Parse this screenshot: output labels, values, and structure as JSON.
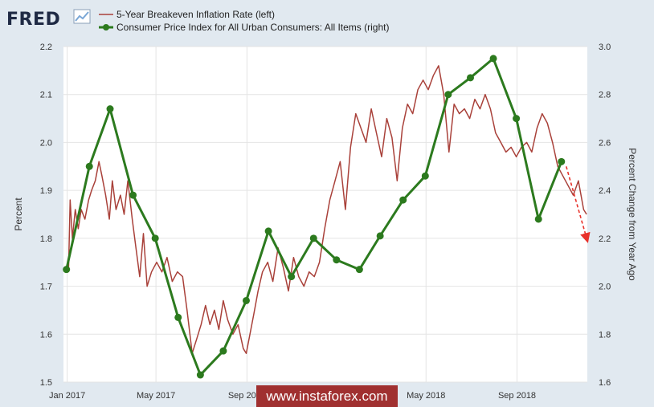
{
  "logo": {
    "text": "FRED"
  },
  "chart_data": {
    "type": "line",
    "title": "",
    "legend_position": "top-left",
    "grid": true,
    "x_tick_labels": [
      "Jan 2017",
      "May 2017",
      "Sep 2017",
      "May 2018",
      "Sep 2018"
    ],
    "x_tick_dates": [
      "2017-01-01",
      "2017-05-01",
      "2017-09-01",
      "2018-05-01",
      "2018-09-01"
    ],
    "xlim": [
      "2016-12-27",
      "2018-12-05"
    ],
    "y_left": {
      "label": "Percent",
      "ylim": [
        1.5,
        2.2
      ],
      "ticks": [
        "1.5",
        "1.6",
        "1.7",
        "1.8",
        "1.9",
        "2.0",
        "2.1",
        "2.2"
      ]
    },
    "y_right": {
      "label": "Percent Change from Year Ago",
      "ylim": [
        1.6,
        3.0
      ],
      "ticks": [
        "1.6",
        "1.8",
        "2.0",
        "2.2",
        "2.4",
        "2.6",
        "2.8",
        "3.0"
      ]
    },
    "series": [
      {
        "name": "5-Year Breakeven Inflation Rate (left)",
        "axis": "left",
        "color": "#a9413a",
        "marker": false,
        "points": [
          [
            "2017-01-03",
            1.74
          ],
          [
            "2017-01-05",
            1.88
          ],
          [
            "2017-01-08",
            1.8
          ],
          [
            "2017-01-12",
            1.86
          ],
          [
            "2017-01-16",
            1.82
          ],
          [
            "2017-01-20",
            1.86
          ],
          [
            "2017-01-25",
            1.84
          ],
          [
            "2017-01-30",
            1.88
          ],
          [
            "2017-02-03",
            1.9
          ],
          [
            "2017-02-08",
            1.92
          ],
          [
            "2017-02-13",
            1.96
          ],
          [
            "2017-02-17",
            1.93
          ],
          [
            "2017-02-22",
            1.89
          ],
          [
            "2017-02-27",
            1.84
          ],
          [
            "2017-03-03",
            1.92
          ],
          [
            "2017-03-08",
            1.86
          ],
          [
            "2017-03-14",
            1.89
          ],
          [
            "2017-03-19",
            1.85
          ],
          [
            "2017-03-24",
            1.92
          ],
          [
            "2017-03-30",
            1.84
          ],
          [
            "2017-04-04",
            1.78
          ],
          [
            "2017-04-09",
            1.72
          ],
          [
            "2017-04-14",
            1.81
          ],
          [
            "2017-04-19",
            1.7
          ],
          [
            "2017-04-25",
            1.73
          ],
          [
            "2017-05-02",
            1.75
          ],
          [
            "2017-05-09",
            1.73
          ],
          [
            "2017-05-16",
            1.76
          ],
          [
            "2017-05-23",
            1.71
          ],
          [
            "2017-05-30",
            1.73
          ],
          [
            "2017-06-06",
            1.72
          ],
          [
            "2017-06-12",
            1.65
          ],
          [
            "2017-06-19",
            1.56
          ],
          [
            "2017-06-25",
            1.59
          ],
          [
            "2017-07-01",
            1.62
          ],
          [
            "2017-07-07",
            1.66
          ],
          [
            "2017-07-13",
            1.62
          ],
          [
            "2017-07-19",
            1.65
          ],
          [
            "2017-07-25",
            1.61
          ],
          [
            "2017-07-31",
            1.67
          ],
          [
            "2017-08-06",
            1.63
          ],
          [
            "2017-08-13",
            1.6
          ],
          [
            "2017-08-20",
            1.62
          ],
          [
            "2017-08-27",
            1.57
          ],
          [
            "2017-08-31",
            1.56
          ],
          [
            "2017-09-05",
            1.6
          ],
          [
            "2017-09-10",
            1.64
          ],
          [
            "2017-09-16",
            1.69
          ],
          [
            "2017-09-22",
            1.73
          ],
          [
            "2017-09-29",
            1.75
          ],
          [
            "2017-10-06",
            1.71
          ],
          [
            "2017-10-13",
            1.78
          ],
          [
            "2017-10-20",
            1.74
          ],
          [
            "2017-10-27",
            1.69
          ],
          [
            "2017-11-03",
            1.76
          ],
          [
            "2017-11-10",
            1.72
          ],
          [
            "2017-11-17",
            1.7
          ],
          [
            "2017-11-24",
            1.73
          ],
          [
            "2017-12-01",
            1.72
          ],
          [
            "2017-12-08",
            1.75
          ],
          [
            "2017-12-15",
            1.82
          ],
          [
            "2017-12-22",
            1.88
          ],
          [
            "2017-12-29",
            1.92
          ],
          [
            "2018-01-05",
            1.96
          ],
          [
            "2018-01-12",
            1.86
          ],
          [
            "2018-01-19",
            1.99
          ],
          [
            "2018-01-26",
            2.06
          ],
          [
            "2018-02-02",
            2.03
          ],
          [
            "2018-02-09",
            2.0
          ],
          [
            "2018-02-16",
            2.07
          ],
          [
            "2018-02-23",
            2.02
          ],
          [
            "2018-03-02",
            1.97
          ],
          [
            "2018-03-09",
            2.05
          ],
          [
            "2018-03-16",
            2.01
          ],
          [
            "2018-03-23",
            1.92
          ],
          [
            "2018-03-30",
            2.03
          ],
          [
            "2018-04-06",
            2.08
          ],
          [
            "2018-04-13",
            2.06
          ],
          [
            "2018-04-20",
            2.11
          ],
          [
            "2018-04-27",
            2.13
          ],
          [
            "2018-05-04",
            2.11
          ],
          [
            "2018-05-11",
            2.14
          ],
          [
            "2018-05-18",
            2.16
          ],
          [
            "2018-05-25",
            2.1
          ],
          [
            "2018-06-01",
            1.98
          ],
          [
            "2018-06-08",
            2.08
          ],
          [
            "2018-06-15",
            2.06
          ],
          [
            "2018-06-22",
            2.07
          ],
          [
            "2018-06-29",
            2.05
          ],
          [
            "2018-07-06",
            2.09
          ],
          [
            "2018-07-13",
            2.07
          ],
          [
            "2018-07-20",
            2.1
          ],
          [
            "2018-07-27",
            2.07
          ],
          [
            "2018-08-03",
            2.02
          ],
          [
            "2018-08-10",
            2.0
          ],
          [
            "2018-08-17",
            1.98
          ],
          [
            "2018-08-24",
            1.99
          ],
          [
            "2018-08-31",
            1.97
          ],
          [
            "2018-09-07",
            1.99
          ],
          [
            "2018-09-14",
            2.0
          ],
          [
            "2018-09-21",
            1.98
          ],
          [
            "2018-09-28",
            2.03
          ],
          [
            "2018-10-05",
            2.06
          ],
          [
            "2018-10-12",
            2.04
          ],
          [
            "2018-10-19",
            2.0
          ],
          [
            "2018-10-26",
            1.95
          ],
          [
            "2018-11-02",
            1.93
          ],
          [
            "2018-11-09",
            1.91
          ],
          [
            "2018-11-16",
            1.89
          ],
          [
            "2018-11-23",
            1.92
          ],
          [
            "2018-11-30",
            1.86
          ],
          [
            "2018-12-04",
            1.85
          ]
        ]
      },
      {
        "name": "Consumer Price Index for All Urban Consumers: All Items (right)",
        "axis": "right",
        "color": "#2c7a1e",
        "marker": true,
        "points": [
          [
            "2016-12-31",
            2.07
          ],
          [
            "2017-01-31",
            2.5
          ],
          [
            "2017-02-28",
            2.74
          ],
          [
            "2017-03-31",
            2.38
          ],
          [
            "2017-04-30",
            2.2
          ],
          [
            "2017-05-31",
            1.87
          ],
          [
            "2017-06-30",
            1.63
          ],
          [
            "2017-07-31",
            1.73
          ],
          [
            "2017-08-31",
            1.94
          ],
          [
            "2017-09-30",
            2.23
          ],
          [
            "2017-10-31",
            2.04
          ],
          [
            "2017-11-30",
            2.2
          ],
          [
            "2017-12-31",
            2.11
          ],
          [
            "2018-01-31",
            2.07
          ],
          [
            "2018-02-28",
            2.21
          ],
          [
            "2018-03-31",
            2.36
          ],
          [
            "2018-04-30",
            2.46
          ],
          [
            "2018-05-31",
            2.8
          ],
          [
            "2018-06-30",
            2.87
          ],
          [
            "2018-07-31",
            2.95
          ],
          [
            "2018-08-31",
            2.7
          ],
          [
            "2018-09-30",
            2.28
          ],
          [
            "2018-10-31",
            2.52
          ]
        ]
      }
    ],
    "annotations": [
      {
        "type": "dashed-arrow",
        "color": "#e8312a",
        "from": [
          "2018-10-31",
          2.52
        ],
        "to": [
          "2018-12-05",
          2.19
        ]
      }
    ]
  },
  "watermark": {
    "text": "www.instaforex.com"
  }
}
